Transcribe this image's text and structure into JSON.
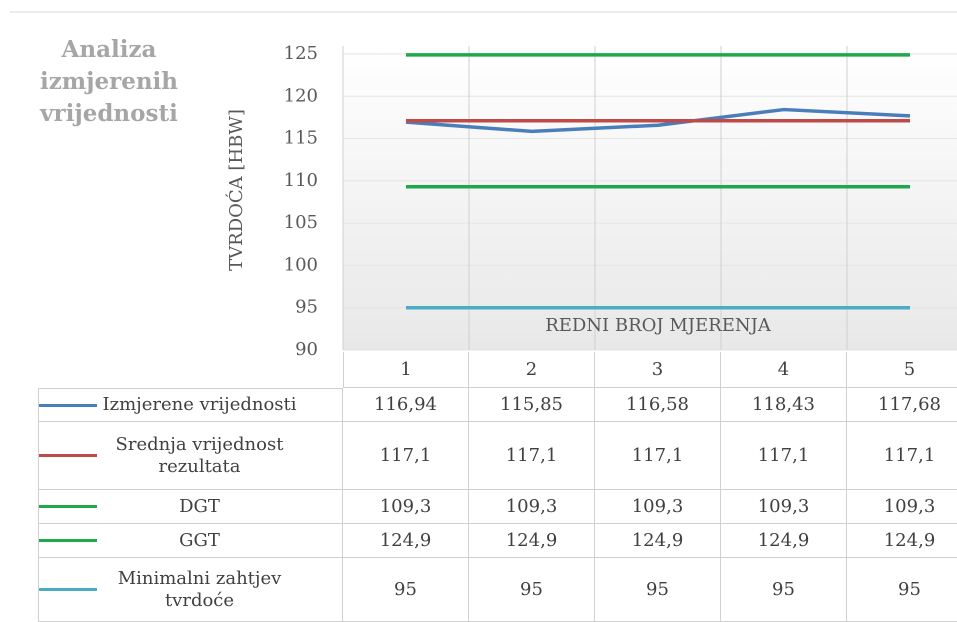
{
  "chart_data": {
    "type": "line",
    "title": "Analiza izmjerenih vrijednosti",
    "y_label": "TVRDOĆA [HBW]",
    "x_label": "REDNI BROJ MJERENJA",
    "categories": [
      "1",
      "2",
      "3",
      "4",
      "5"
    ],
    "ylim": [
      90,
      125
    ],
    "yticks": [
      90,
      95,
      100,
      105,
      110,
      115,
      120,
      125
    ],
    "grid": true,
    "series": [
      {
        "name": "Izmjerene vrijednosti",
        "color": "#4a7ebb",
        "values": [
          116.94,
          115.85,
          116.58,
          118.43,
          117.68
        ],
        "value_labels": [
          "116,94",
          "115,85",
          "116,58",
          "118,43",
          "117,68"
        ]
      },
      {
        "name": "Srednja vrijednost rezultata",
        "color": "#be4b48",
        "values": [
          117.1,
          117.1,
          117.1,
          117.1,
          117.1
        ],
        "value_labels": [
          "117,1",
          "117,1",
          "117,1",
          "117,1",
          "117,1"
        ]
      },
      {
        "name": "DGT",
        "color": "#1ea84a",
        "values": [
          109.3,
          109.3,
          109.3,
          109.3,
          109.3
        ],
        "value_labels": [
          "109,3",
          "109,3",
          "109,3",
          "109,3",
          "109,3"
        ]
      },
      {
        "name": "GGT",
        "color": "#1ea84a",
        "values": [
          124.9,
          124.9,
          124.9,
          124.9,
          124.9
        ],
        "value_labels": [
          "124,9",
          "124,9",
          "124,9",
          "124,9",
          "124,9"
        ]
      },
      {
        "name": "Minimalni zahtjev tvrdoće",
        "color": "#4bacc6",
        "values": [
          95,
          95,
          95,
          95,
          95
        ],
        "value_labels": [
          "95",
          "95",
          "95",
          "95",
          "95"
        ]
      }
    ]
  }
}
